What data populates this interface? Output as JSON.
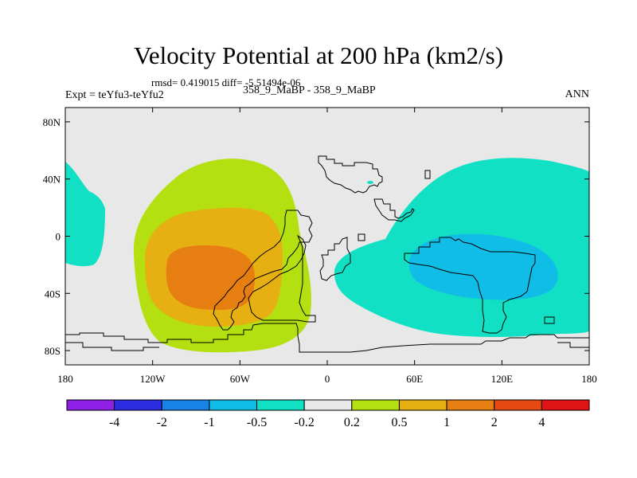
{
  "title": "Velocity Potential at 200 hPa (km2/s)",
  "stats_text": "rmsd= 0.419015 diff= -5.51494e-06",
  "expt_text": "Expt = teYfu3-teYfu2",
  "cases_text": "358_9_MaBP - 358_9_MaBP",
  "season": "ANN",
  "map": {
    "lon_ticks": [
      {
        "value": -180,
        "label": "180"
      },
      {
        "value": -120,
        "label": "120W"
      },
      {
        "value": -60,
        "label": "60W"
      },
      {
        "value": 0,
        "label": "0"
      },
      {
        "value": 60,
        "label": "60E"
      },
      {
        "value": 120,
        "label": "120E"
      },
      {
        "value": 180,
        "label": "180"
      }
    ],
    "lat_ticks": [
      {
        "value": 80,
        "label": "80N"
      },
      {
        "value": 40,
        "label": "40N"
      },
      {
        "value": 0,
        "label": "0"
      },
      {
        "value": -40,
        "label": "40S"
      },
      {
        "value": -80,
        "label": "80S"
      }
    ],
    "lon_range": [
      -180,
      180
    ],
    "lat_range": [
      -90,
      90
    ]
  },
  "colorbar": {
    "colors": [
      "#8e20e6",
      "#2c2ce0",
      "#1882e6",
      "#10bde6",
      "#12e0c4",
      "#e8e8e8",
      "#b4e012",
      "#e6b012",
      "#e67e12",
      "#e64a12",
      "#e01414"
    ],
    "labels": [
      "-4",
      "-2",
      "-1",
      "-0.5",
      "-0.2",
      "0.2",
      "0.5",
      "1",
      "2",
      "4"
    ]
  },
  "colors": {
    "background": "#e8e8e8",
    "coastline": "#000000"
  }
}
